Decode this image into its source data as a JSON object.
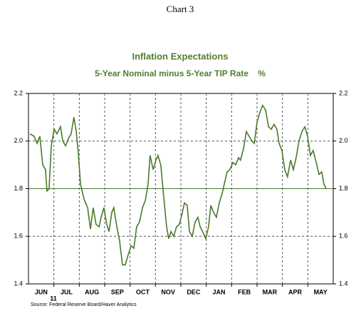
{
  "chart_data": {
    "type": "line",
    "header": "Chart 3",
    "title": "Inflation Expectations",
    "subtitle": "5-Year Nominal minus 5-Year TIP Rate    %",
    "source": "Source: Federal Reserve Board/Haver Analytics",
    "year_label": "11",
    "categories": [
      "JUN",
      "JUL",
      "AUG",
      "SEP",
      "OCT",
      "NOV",
      "DEC",
      "JAN",
      "FEB",
      "MAR",
      "APR",
      "MAY"
    ],
    "xlim": [
      0,
      12
    ],
    "ylim": [
      1.4,
      2.2
    ],
    "yticks": [
      {
        "value": 1.4,
        "label": "1.4"
      },
      1.6,
      1.8,
      {
        "value": 2.0,
        "label": "2.0"
      },
      2.2
    ],
    "grid": true,
    "reference_line": 1.8,
    "x": [
      0.06,
      0.22,
      0.34,
      0.45,
      0.56,
      0.67,
      0.73,
      0.81,
      0.9,
      1.01,
      1.12,
      1.26,
      1.35,
      1.46,
      1.57,
      1.68,
      1.79,
      1.88,
      1.96,
      2.05,
      2.13,
      2.21,
      2.33,
      2.44,
      2.55,
      2.66,
      2.78,
      2.86,
      2.97,
      3.08,
      3.17,
      3.28,
      3.36,
      3.48,
      3.59,
      3.7,
      3.81,
      3.92,
      4.04,
      4.15,
      4.26,
      4.37,
      4.49,
      4.6,
      4.71,
      4.79,
      4.91,
      5.02,
      5.1,
      5.21,
      5.33,
      5.44,
      5.52,
      5.61,
      5.72,
      5.83,
      5.94,
      6.06,
      6.14,
      6.25,
      6.34,
      6.45,
      6.56,
      6.67,
      6.76,
      6.9,
      6.98,
      7.09,
      7.18,
      7.29,
      7.4,
      7.51,
      7.63,
      7.71,
      7.82,
      7.93,
      8.05,
      8.16,
      8.27,
      8.35,
      8.47,
      8.58,
      8.69,
      8.8,
      8.89,
      9.0,
      9.11,
      9.22,
      9.34,
      9.45,
      9.56,
      9.67,
      9.78,
      9.87,
      9.98,
      10.09,
      10.2,
      10.32,
      10.43,
      10.54,
      10.65,
      10.77,
      10.88,
      10.99,
      11.1,
      11.21,
      11.33,
      11.44,
      11.55,
      11.63,
      11.72
    ],
    "series": [
      {
        "color": "#4a7a2a",
        "values": [
          2.03,
          2.02,
          1.99,
          2.02,
          1.9,
          1.88,
          1.79,
          1.8,
          1.98,
          2.05,
          2.03,
          2.06,
          2.0,
          1.98,
          2.01,
          2.03,
          2.1,
          2.04,
          1.95,
          1.82,
          1.78,
          1.75,
          1.72,
          1.63,
          1.72,
          1.65,
          1.64,
          1.68,
          1.72,
          1.65,
          1.62,
          1.7,
          1.72,
          1.64,
          1.58,
          1.48,
          1.48,
          1.52,
          1.56,
          1.55,
          1.64,
          1.66,
          1.72,
          1.75,
          1.82,
          1.94,
          1.88,
          1.92,
          1.94,
          1.9,
          1.76,
          1.64,
          1.59,
          1.62,
          1.6,
          1.64,
          1.65,
          1.7,
          1.74,
          1.73,
          1.62,
          1.6,
          1.66,
          1.68,
          1.64,
          1.61,
          1.59,
          1.64,
          1.73,
          1.7,
          1.68,
          1.74,
          1.78,
          1.82,
          1.87,
          1.88,
          1.91,
          1.9,
          1.93,
          1.92,
          1.97,
          2.04,
          2.02,
          2.0,
          1.99,
          2.08,
          2.12,
          2.15,
          2.13,
          2.06,
          2.05,
          2.07,
          2.05,
          1.99,
          1.96,
          1.88,
          1.85,
          1.92,
          1.88,
          1.93,
          2.0,
          2.04,
          2.06,
          2.02,
          1.94,
          1.96,
          1.91,
          1.86,
          1.87,
          1.82,
          1.8
        ]
      }
    ]
  }
}
